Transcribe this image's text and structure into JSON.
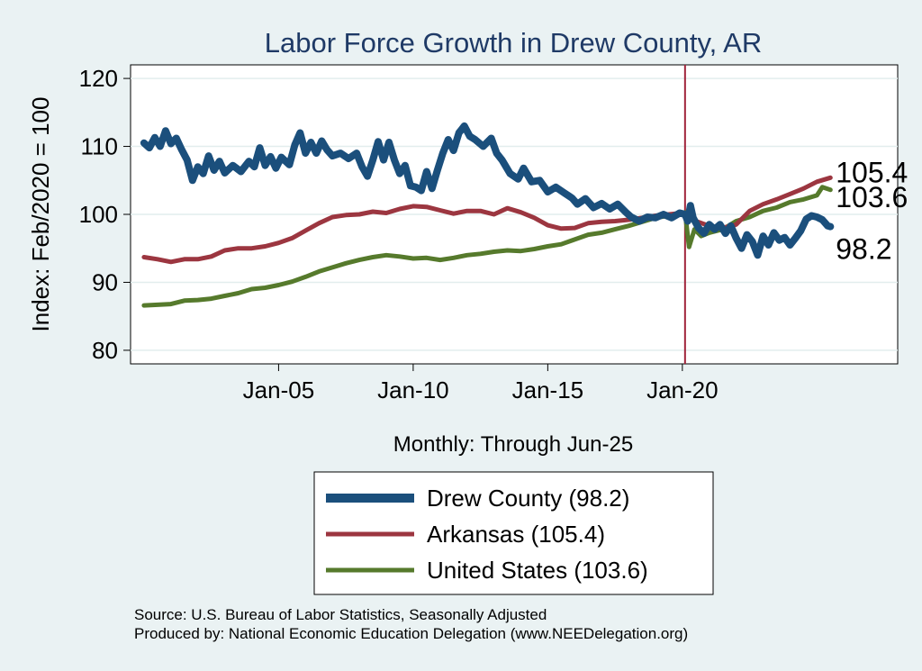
{
  "chart_data": {
    "type": "line",
    "title": "Labor Force Growth in Drew  County, AR",
    "ylabel": "Index: Feb/2020 = 100",
    "xlabel": "Monthly: Through Jun-25",
    "ylim": [
      78,
      122
    ],
    "xlim": [
      1999.5,
      2028.0
    ],
    "yticks": [
      80,
      90,
      100,
      110,
      120
    ],
    "xticks": [
      {
        "label": "Jan-05",
        "value": 2005
      },
      {
        "label": "Jan-10",
        "value": 2010
      },
      {
        "label": "Jan-15",
        "value": 2015
      },
      {
        "label": "Jan-20",
        "value": 2020
      }
    ],
    "reference_line": {
      "x": 2020.1,
      "color": "#a0233a"
    },
    "series": [
      {
        "name": "Drew  County",
        "legend": "Drew  County (98.2)",
        "end_value": "98.2",
        "color": "#1b4f7c",
        "width": 8,
        "points": [
          [
            2000.0,
            110.5
          ],
          [
            2000.2,
            109.8
          ],
          [
            2000.4,
            111.3
          ],
          [
            2000.6,
            110.0
          ],
          [
            2000.8,
            112.3
          ],
          [
            2001.0,
            110.4
          ],
          [
            2001.2,
            111.2
          ],
          [
            2001.4,
            109.5
          ],
          [
            2001.6,
            108.0
          ],
          [
            2001.8,
            105.0
          ],
          [
            2002.0,
            107.0
          ],
          [
            2002.2,
            106.0
          ],
          [
            2002.4,
            108.6
          ],
          [
            2002.6,
            106.5
          ],
          [
            2002.8,
            107.8
          ],
          [
            2003.0,
            106.1
          ],
          [
            2003.3,
            107.2
          ],
          [
            2003.6,
            106.3
          ],
          [
            2003.9,
            107.8
          ],
          [
            2004.1,
            107.0
          ],
          [
            2004.3,
            109.8
          ],
          [
            2004.5,
            107.2
          ],
          [
            2004.7,
            108.5
          ],
          [
            2004.9,
            106.8
          ],
          [
            2005.1,
            108.4
          ],
          [
            2005.4,
            107.3
          ],
          [
            2005.6,
            110.2
          ],
          [
            2005.8,
            112.0
          ],
          [
            2006.0,
            109.0
          ],
          [
            2006.2,
            110.6
          ],
          [
            2006.4,
            109.0
          ],
          [
            2006.6,
            110.8
          ],
          [
            2006.8,
            109.5
          ],
          [
            2007.0,
            108.6
          ],
          [
            2007.3,
            109.0
          ],
          [
            2007.6,
            108.2
          ],
          [
            2007.9,
            109.0
          ],
          [
            2008.1,
            107.0
          ],
          [
            2008.3,
            105.6
          ],
          [
            2008.5,
            108.0
          ],
          [
            2008.7,
            110.7
          ],
          [
            2008.9,
            108.0
          ],
          [
            2009.1,
            110.6
          ],
          [
            2009.3,
            108.0
          ],
          [
            2009.5,
            106.0
          ],
          [
            2009.7,
            107.2
          ],
          [
            2009.9,
            104.2
          ],
          [
            2010.1,
            104.0
          ],
          [
            2010.3,
            103.5
          ],
          [
            2010.5,
            106.3
          ],
          [
            2010.7,
            103.8
          ],
          [
            2010.9,
            106.5
          ],
          [
            2011.1,
            109.0
          ],
          [
            2011.3,
            111.0
          ],
          [
            2011.5,
            109.4
          ],
          [
            2011.7,
            112.0
          ],
          [
            2011.9,
            113.0
          ],
          [
            2012.1,
            111.5
          ],
          [
            2012.3,
            111.0
          ],
          [
            2012.6,
            110.0
          ],
          [
            2012.9,
            111.2
          ],
          [
            2013.1,
            109.0
          ],
          [
            2013.3,
            108.0
          ],
          [
            2013.6,
            106.0
          ],
          [
            2013.9,
            105.2
          ],
          [
            2014.1,
            106.8
          ],
          [
            2014.4,
            104.8
          ],
          [
            2014.7,
            105.0
          ],
          [
            2015.0,
            103.3
          ],
          [
            2015.3,
            104.0
          ],
          [
            2015.6,
            103.2
          ],
          [
            2015.9,
            102.4
          ],
          [
            2016.1,
            101.5
          ],
          [
            2016.4,
            102.3
          ],
          [
            2016.7,
            101.0
          ],
          [
            2017.0,
            101.6
          ],
          [
            2017.3,
            100.8
          ],
          [
            2017.6,
            101.5
          ],
          [
            2017.9,
            100.3
          ],
          [
            2018.1,
            99.6
          ],
          [
            2018.4,
            99.0
          ],
          [
            2018.7,
            99.6
          ],
          [
            2019.0,
            99.5
          ],
          [
            2019.3,
            100.0
          ],
          [
            2019.6,
            99.5
          ],
          [
            2019.9,
            100.2
          ],
          [
            2020.1,
            100.0
          ],
          [
            2020.2,
            99.0
          ],
          [
            2020.3,
            101.3
          ],
          [
            2020.4,
            99.5
          ],
          [
            2020.6,
            98.0
          ],
          [
            2020.8,
            97.2
          ],
          [
            2021.0,
            98.5
          ],
          [
            2021.2,
            97.8
          ],
          [
            2021.4,
            98.5
          ],
          [
            2021.6,
            97.2
          ],
          [
            2021.8,
            98.3
          ],
          [
            2022.0,
            96.5
          ],
          [
            2022.2,
            95.0
          ],
          [
            2022.4,
            97.0
          ],
          [
            2022.6,
            96.0
          ],
          [
            2022.8,
            94.0
          ],
          [
            2023.0,
            96.8
          ],
          [
            2023.2,
            95.5
          ],
          [
            2023.4,
            97.3
          ],
          [
            2023.6,
            96.2
          ],
          [
            2023.8,
            96.6
          ],
          [
            2024.0,
            95.5
          ],
          [
            2024.2,
            96.5
          ],
          [
            2024.4,
            97.6
          ],
          [
            2024.6,
            99.3
          ],
          [
            2024.8,
            99.8
          ],
          [
            2025.0,
            99.6
          ],
          [
            2025.2,
            99.2
          ],
          [
            2025.4,
            98.3
          ],
          [
            2025.5,
            98.2
          ]
        ]
      },
      {
        "name": "Arkansas",
        "legend": "Arkansas (105.4)",
        "end_value": "105.4",
        "color": "#9c3640",
        "width": 5,
        "points": [
          [
            2000.0,
            93.7
          ],
          [
            2000.5,
            93.4
          ],
          [
            2001.0,
            93.0
          ],
          [
            2001.5,
            93.4
          ],
          [
            2002.0,
            93.4
          ],
          [
            2002.5,
            93.8
          ],
          [
            2003.0,
            94.7
          ],
          [
            2003.5,
            95.0
          ],
          [
            2004.0,
            95.0
          ],
          [
            2004.5,
            95.3
          ],
          [
            2005.0,
            95.8
          ],
          [
            2005.5,
            96.5
          ],
          [
            2006.0,
            97.6
          ],
          [
            2006.5,
            98.7
          ],
          [
            2007.0,
            99.6
          ],
          [
            2007.5,
            99.9
          ],
          [
            2008.0,
            100.0
          ],
          [
            2008.5,
            100.4
          ],
          [
            2009.0,
            100.2
          ],
          [
            2009.5,
            100.8
          ],
          [
            2010.0,
            101.2
          ],
          [
            2010.5,
            101.1
          ],
          [
            2011.0,
            100.6
          ],
          [
            2011.5,
            100.1
          ],
          [
            2012.0,
            100.5
          ],
          [
            2012.5,
            100.5
          ],
          [
            2013.0,
            100.0
          ],
          [
            2013.5,
            100.9
          ],
          [
            2014.0,
            100.3
          ],
          [
            2014.5,
            99.5
          ],
          [
            2015.0,
            98.4
          ],
          [
            2015.5,
            97.9
          ],
          [
            2016.0,
            98.0
          ],
          [
            2016.5,
            98.7
          ],
          [
            2017.0,
            98.9
          ],
          [
            2017.5,
            99.0
          ],
          [
            2018.0,
            99.2
          ],
          [
            2018.5,
            99.5
          ],
          [
            2019.0,
            99.8
          ],
          [
            2019.5,
            100.0
          ],
          [
            2020.0,
            100.2
          ],
          [
            2020.15,
            100.0
          ],
          [
            2020.3,
            100.6
          ],
          [
            2020.5,
            99.0
          ],
          [
            2021.0,
            98.3
          ],
          [
            2021.5,
            98.0
          ],
          [
            2022.0,
            98.5
          ],
          [
            2022.5,
            100.5
          ],
          [
            2023.0,
            101.5
          ],
          [
            2023.5,
            102.2
          ],
          [
            2024.0,
            103.0
          ],
          [
            2024.5,
            103.8
          ],
          [
            2025.0,
            104.8
          ],
          [
            2025.5,
            105.4
          ]
        ]
      },
      {
        "name": "United States",
        "legend": "United States (103.6)",
        "end_value": "103.6",
        "color": "#567a2c",
        "width": 5,
        "points": [
          [
            2000.0,
            86.6
          ],
          [
            2000.5,
            86.7
          ],
          [
            2001.0,
            86.8
          ],
          [
            2001.5,
            87.3
          ],
          [
            2002.0,
            87.4
          ],
          [
            2002.5,
            87.6
          ],
          [
            2003.0,
            88.0
          ],
          [
            2003.5,
            88.4
          ],
          [
            2004.0,
            89.0
          ],
          [
            2004.5,
            89.2
          ],
          [
            2005.0,
            89.6
          ],
          [
            2005.5,
            90.1
          ],
          [
            2006.0,
            90.8
          ],
          [
            2006.5,
            91.6
          ],
          [
            2007.0,
            92.2
          ],
          [
            2007.5,
            92.8
          ],
          [
            2008.0,
            93.3
          ],
          [
            2008.5,
            93.7
          ],
          [
            2009.0,
            94.0
          ],
          [
            2009.5,
            93.8
          ],
          [
            2010.0,
            93.5
          ],
          [
            2010.5,
            93.6
          ],
          [
            2011.0,
            93.3
          ],
          [
            2011.5,
            93.6
          ],
          [
            2012.0,
            94.0
          ],
          [
            2012.5,
            94.2
          ],
          [
            2013.0,
            94.5
          ],
          [
            2013.5,
            94.7
          ],
          [
            2014.0,
            94.6
          ],
          [
            2014.5,
            94.9
          ],
          [
            2015.0,
            95.3
          ],
          [
            2015.5,
            95.6
          ],
          [
            2016.0,
            96.3
          ],
          [
            2016.5,
            97.0
          ],
          [
            2017.0,
            97.3
          ],
          [
            2017.5,
            97.8
          ],
          [
            2018.0,
            98.3
          ],
          [
            2018.5,
            98.9
          ],
          [
            2019.0,
            99.5
          ],
          [
            2019.5,
            99.8
          ],
          [
            2020.0,
            100.0
          ],
          [
            2020.1,
            100.3
          ],
          [
            2020.25,
            95.2
          ],
          [
            2020.45,
            97.8
          ],
          [
            2020.7,
            96.8
          ],
          [
            2021.0,
            97.3
          ],
          [
            2021.5,
            97.8
          ],
          [
            2022.0,
            99.0
          ],
          [
            2022.5,
            99.6
          ],
          [
            2023.0,
            100.5
          ],
          [
            2023.5,
            101.0
          ],
          [
            2024.0,
            101.8
          ],
          [
            2024.5,
            102.2
          ],
          [
            2025.0,
            102.8
          ],
          [
            2025.2,
            104.0
          ],
          [
            2025.5,
            103.6
          ]
        ]
      }
    ]
  },
  "source_text": "Source: U.S. Bureau of Labor Statistics, Seasonally Adjusted",
  "produced_text": "Produced by: National Economic Education Delegation (www.NEEDelegation.org)"
}
